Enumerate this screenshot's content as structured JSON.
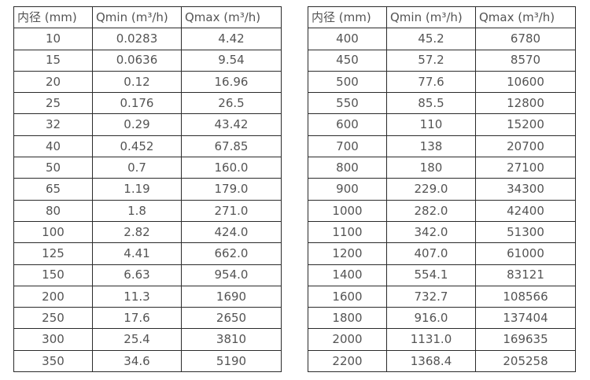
{
  "colors": {
    "background": "#ffffff",
    "border": "#2b2b2b",
    "text": "#545454"
  },
  "tables": [
    {
      "title": "small-diameters",
      "headers": [
        "内径 (mm)",
        "Qmin (m³/h)",
        "Qmax (m³/h)"
      ],
      "rows": [
        [
          "10",
          "0.0283",
          "4.42"
        ],
        [
          "15",
          "0.0636",
          "9.54"
        ],
        [
          "20",
          "0.12",
          "16.96"
        ],
        [
          "25",
          "0.176",
          "26.5"
        ],
        [
          "32",
          "0.29",
          "43.42"
        ],
        [
          "40",
          "0.452",
          "67.85"
        ],
        [
          "50",
          "0.7",
          "160.0"
        ],
        [
          "65",
          "1.19",
          "179.0"
        ],
        [
          "80",
          "1.8",
          "271.0"
        ],
        [
          "100",
          "2.82",
          "424.0"
        ],
        [
          "125",
          "4.41",
          "662.0"
        ],
        [
          "150",
          "6.63",
          "954.0"
        ],
        [
          "200",
          "11.3",
          "1690"
        ],
        [
          "250",
          "17.6",
          "2650"
        ],
        [
          "300",
          "25.4",
          "3810"
        ],
        [
          "350",
          "34.6",
          "5190"
        ]
      ]
    },
    {
      "title": "large-diameters",
      "headers": [
        "内径 (mm)",
        "Qmin (m³/h)",
        "Qmax (m³/h)"
      ],
      "rows": [
        [
          "400",
          "45.2",
          "6780"
        ],
        [
          "450",
          "57.2",
          "8570"
        ],
        [
          "500",
          "77.6",
          "10600"
        ],
        [
          "550",
          "85.5",
          "12800"
        ],
        [
          "600",
          "110",
          "15200"
        ],
        [
          "700",
          "138",
          "20700"
        ],
        [
          "800",
          "180",
          "27100"
        ],
        [
          "900",
          "229.0",
          "34300"
        ],
        [
          "1000",
          "282.0",
          "42400"
        ],
        [
          "1100",
          "342.0",
          "51300"
        ],
        [
          "1200",
          "407.0",
          "61000"
        ],
        [
          "1400",
          "554.1",
          "83121"
        ],
        [
          "1600",
          "732.7",
          "108566"
        ],
        [
          "1800",
          "916.0",
          "137404"
        ],
        [
          "2000",
          "1131.0",
          "169635"
        ],
        [
          "2200",
          "1368.4",
          "205258"
        ]
      ]
    }
  ]
}
